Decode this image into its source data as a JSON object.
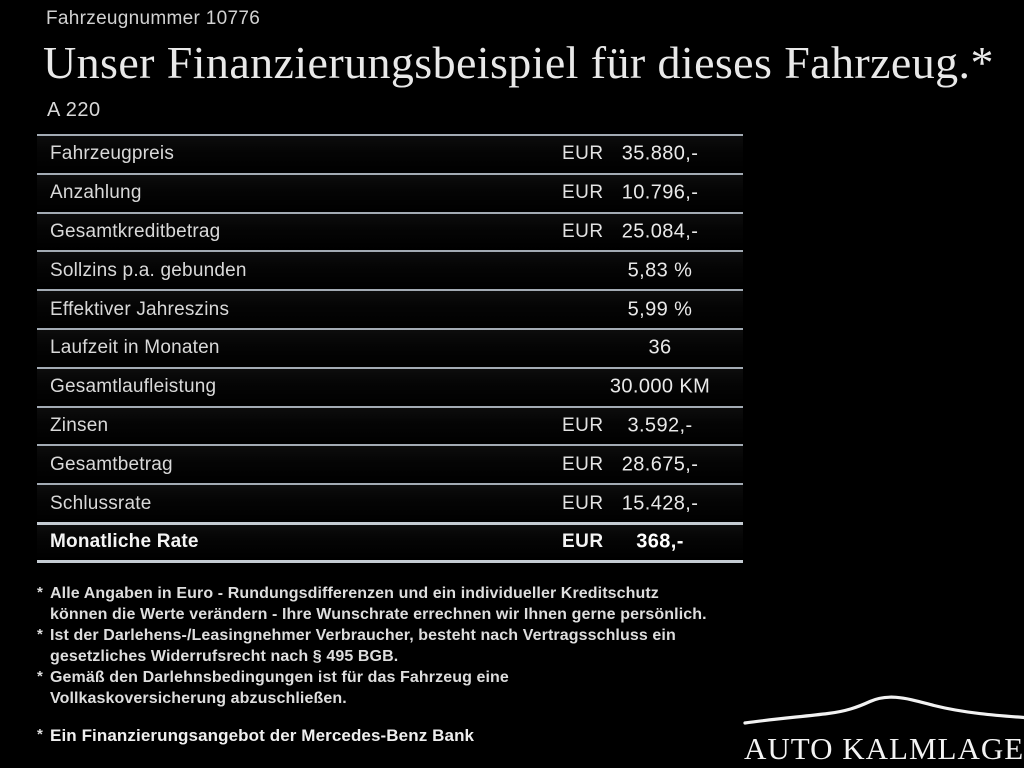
{
  "header": {
    "vehicle_number": "Fahrzeugnummer 10776",
    "title": "Unser Finanzierungsbeispiel für dieses Fahrzeug.*",
    "model": "A 220"
  },
  "table": {
    "rows": [
      {
        "label": "Fahrzeugpreis",
        "currency": "EUR",
        "value": "35.880,-"
      },
      {
        "label": "Anzahlung",
        "currency": "EUR",
        "value": "10.796,-"
      },
      {
        "label": "Gesamtkreditbetrag",
        "currency": "EUR",
        "value": "25.084,-"
      },
      {
        "label": "Sollzins p.a. gebunden",
        "currency": "",
        "value": "5,83 %"
      },
      {
        "label": "Effektiver Jahreszins",
        "currency": "",
        "value": "5,99 %"
      },
      {
        "label": "Laufzeit in Monaten",
        "currency": "",
        "value": "36"
      },
      {
        "label": "Gesamtlaufleistung",
        "currency": "",
        "value": "30.000 KM"
      },
      {
        "label": "Zinsen",
        "currency": "EUR",
        "value": "3.592,-"
      },
      {
        "label": "Gesamtbetrag",
        "currency": "EUR",
        "value": "28.675,-"
      },
      {
        "label": "Schlussrate",
        "currency": "EUR",
        "value": "15.428,-"
      },
      {
        "label": "Monatliche Rate",
        "currency": "EUR",
        "value": "368,-",
        "emphasis": true
      }
    ]
  },
  "footnotes": [
    {
      "marker": "*",
      "lines": [
        "Alle Angaben in Euro - Rundungsdifferenzen und ein individueller Kreditschutz",
        "können die Werte verändern - Ihre Wunschrate errechnen wir Ihnen gerne persönlich."
      ]
    },
    {
      "marker": "*",
      "lines": [
        "Ist der Darlehens-/Leasingnehmer Verbraucher, besteht nach Vertragsschluss ein",
        "gesetzliches Widerrufsrecht nach § 495 BGB."
      ]
    },
    {
      "marker": "*",
      "lines": [
        "Gemäß den Darlehnsbedingungen ist für das Fahrzeug eine",
        "Vollkaskoversicherung abzuschließen."
      ]
    },
    {
      "marker": "*",
      "lines": [
        "Ein Finanzierungsangebot der Mercedes-Benz Bank"
      ],
      "strong": true,
      "gap_before": true
    }
  ],
  "dealer": {
    "logo_text": "AUTO KALMLAGE",
    "logo_icon": "car-silhouette-icon"
  },
  "colors": {
    "background": "#000000",
    "table_line": "#a3abb4",
    "text": "#dcdcdc",
    "text_bright": "#f2f2f2"
  }
}
